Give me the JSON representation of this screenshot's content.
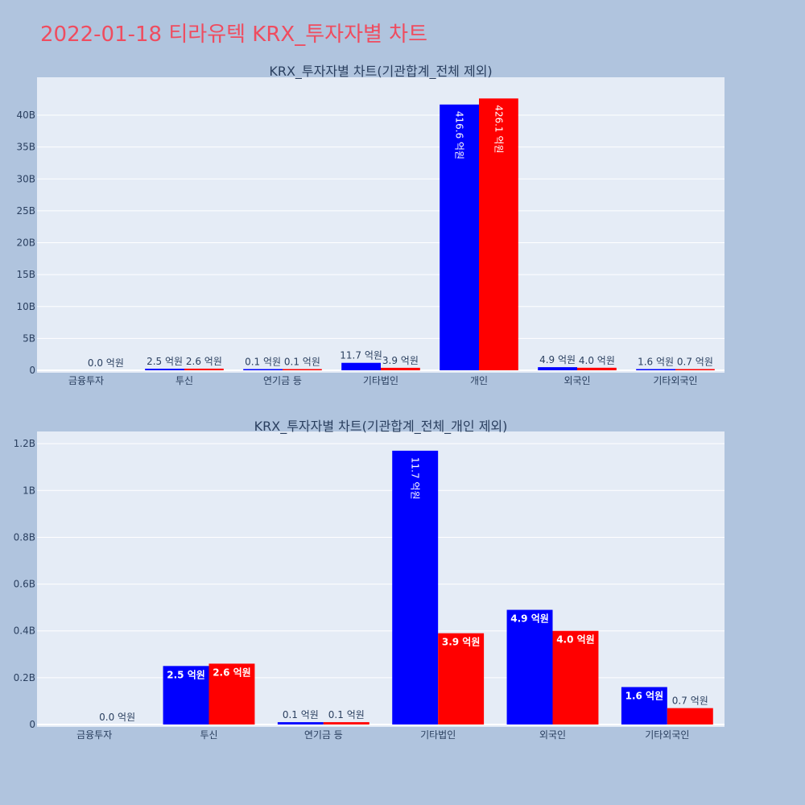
{
  "page": {
    "title": "2022-01-18 티라유텍 KRX_투자자별 차트"
  },
  "colors": {
    "background": "#b0c4de",
    "plot_bg": "#e5ecf6",
    "grid": "#ffffff",
    "title": "#ef4c5f",
    "text": "#2a3f5f",
    "series": [
      "#0000ff",
      "#ff0000"
    ]
  },
  "chart_data": [
    {
      "type": "bar",
      "title": "KRX_투자자별 차트(기관합계_전체 제외)",
      "categories": [
        "금융투자",
        "투신",
        "연기금 등",
        "기타법인",
        "개인",
        "외국인",
        "기타외국인"
      ],
      "series": [
        {
          "values": [
            0,
            0.25,
            0.01,
            1.17,
            41.66,
            0.49,
            0.16
          ],
          "labels": [
            "",
            "2.5 억원",
            "0.1 억원",
            "11.7 억원",
            "416.6 억원",
            "4.9 억원",
            "1.6 억원"
          ]
        },
        {
          "values": [
            0.0,
            0.26,
            0.01,
            0.39,
            42.61,
            0.4,
            0.07
          ],
          "labels": [
            "0.0 억원",
            "2.6 억원",
            "0.1 억원",
            "3.9 억원",
            "426.1 억원",
            "4.0 억원",
            "0.7 억원"
          ]
        }
      ],
      "ylim": [
        0,
        45.3
      ],
      "yticks": [
        0,
        5,
        10,
        15,
        20,
        25,
        30,
        35,
        40
      ],
      "ytick_labels": [
        "0",
        "5B",
        "10B",
        "15B",
        "20B",
        "25B",
        "30B",
        "35B",
        "40B"
      ],
      "grid": true
    },
    {
      "type": "bar",
      "title": "KRX_투자자별 차트(기관합계_전체_개인 제외)",
      "categories": [
        "금융투자",
        "투신",
        "연기금 등",
        "기타법인",
        "외국인",
        "기타외국인"
      ],
      "series": [
        {
          "values": [
            0,
            0.25,
            0.01,
            1.17,
            0.49,
            0.16
          ],
          "labels": [
            "",
            "2.5 억원",
            "0.1 억원",
            "11.7 억원",
            "4.9 억원",
            "1.6 억원"
          ]
        },
        {
          "values": [
            0.0,
            0.26,
            0.01,
            0.39,
            0.4,
            0.07
          ],
          "labels": [
            "0.0 억원",
            "2.6 억원",
            "0.1 억원",
            "3.9 억원",
            "4.0 억원",
            "0.7 억원"
          ]
        }
      ],
      "ylim": [
        0,
        1.235
      ],
      "yticks": [
        0,
        0.2,
        0.4,
        0.6,
        0.8,
        1.0,
        1.2
      ],
      "ytick_labels": [
        "0",
        "0.2B",
        "0.4B",
        "0.6B",
        "0.8B",
        "1B",
        "1.2B"
      ],
      "grid": true
    }
  ]
}
